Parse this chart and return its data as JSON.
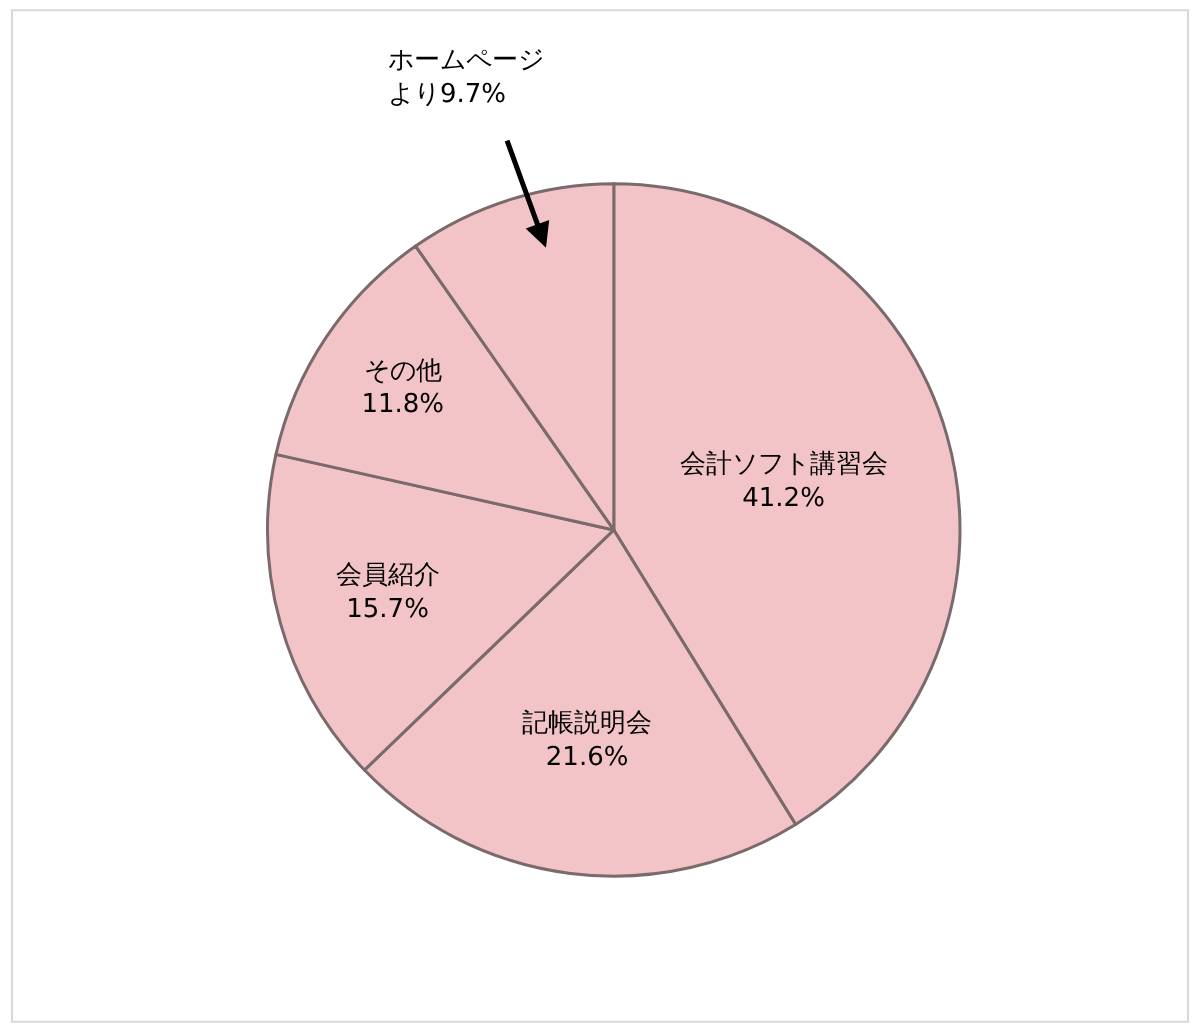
{
  "chart_data": {
    "type": "pie",
    "categories": [
      "会計ソフト講習会",
      "記帳説明会",
      "会員紹介",
      "その他",
      "ホームページより"
    ],
    "values": [
      41.2,
      21.6,
      15.7,
      11.8,
      9.7
    ],
    "value_labels": [
      "41.2%",
      "21.6%",
      "15.7%",
      "11.8%",
      "9.7%"
    ],
    "colors": [
      "#f2c4c8",
      "#f2c4c8",
      "#f2c4c8",
      "#f2c4c8",
      "#f2c4c8"
    ],
    "legend": false
  }
}
